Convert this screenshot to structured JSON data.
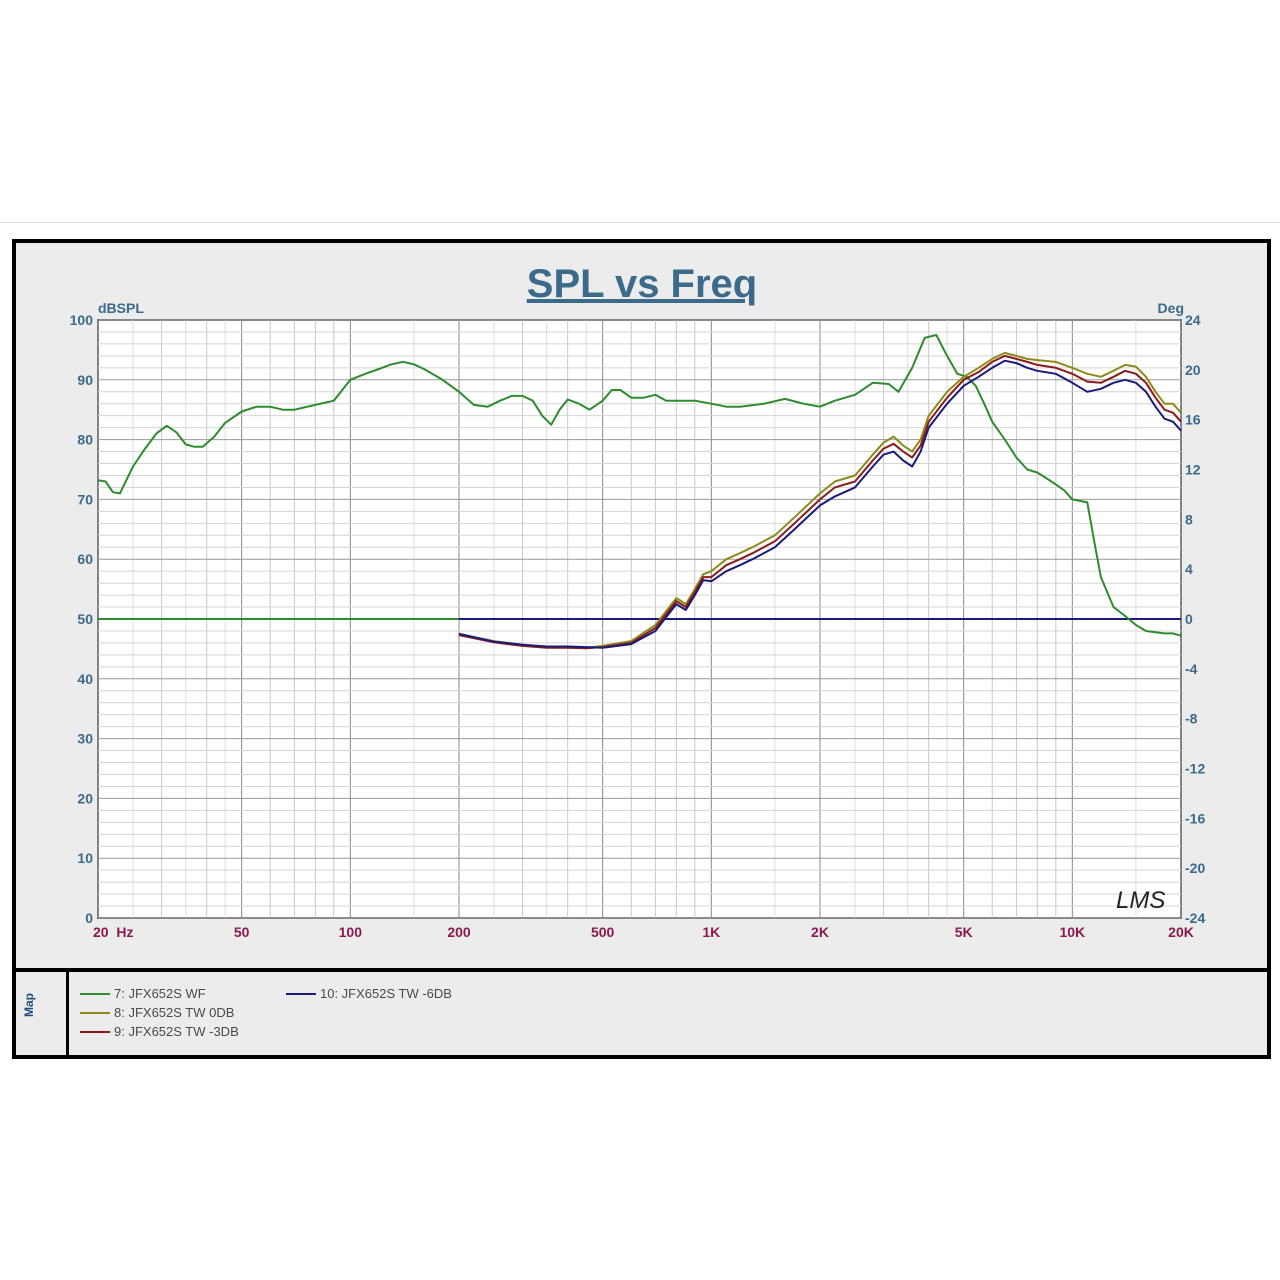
{
  "chart_data": {
    "type": "line",
    "title": "SPL vs Freq",
    "ylabel_left": "dBSPL",
    "ylabel_right": "Deg",
    "x_scale": "log",
    "xlim": [
      20,
      20000
    ],
    "ylim_left": [
      0,
      100
    ],
    "ylim_right": [
      -24,
      24
    ],
    "x_ticks": [
      {
        "value": 20,
        "label": "20  Hz"
      },
      {
        "value": 50,
        "label": "50"
      },
      {
        "value": 100,
        "label": "100"
      },
      {
        "value": 200,
        "label": "200"
      },
      {
        "value": 500,
        "label": "500"
      },
      {
        "value": 1000,
        "label": "1K"
      },
      {
        "value": 2000,
        "label": "2K"
      },
      {
        "value": 5000,
        "label": "5K"
      },
      {
        "value": 10000,
        "label": "10K"
      },
      {
        "value": 20000,
        "label": "20K"
      }
    ],
    "y_left_ticks": [
      "0",
      "10",
      "20",
      "30",
      "40",
      "50",
      "60",
      "70",
      "80",
      "90",
      "100"
    ],
    "y_right_ticks": [
      "-24",
      "-20",
      "-16",
      "-12",
      "-8",
      "-4",
      "0",
      "4",
      "8",
      "12",
      "16",
      "20",
      "24"
    ],
    "grid": true,
    "watermark": "LMS",
    "series": [
      {
        "name": "7: JFX652S  WF",
        "color": "#2e8b2e",
        "points": [
          [
            20,
            73.2
          ],
          [
            21,
            73
          ],
          [
            22,
            71.2
          ],
          [
            23,
            71
          ],
          [
            25,
            75.5
          ],
          [
            27,
            78.5
          ],
          [
            29,
            81
          ],
          [
            31,
            82.3
          ],
          [
            33,
            81.2
          ],
          [
            35,
            79.2
          ],
          [
            37,
            78.8
          ],
          [
            39,
            78.8
          ],
          [
            42,
            80.5
          ],
          [
            45,
            82.8
          ],
          [
            50,
            84.7
          ],
          [
            55,
            85.5
          ],
          [
            60,
            85.5
          ],
          [
            65,
            85
          ],
          [
            70,
            85
          ],
          [
            80,
            85.8
          ],
          [
            90,
            86.5
          ],
          [
            100,
            90
          ],
          [
            110,
            91
          ],
          [
            120,
            91.8
          ],
          [
            130,
            92.6
          ],
          [
            140,
            93
          ],
          [
            150,
            92.6
          ],
          [
            160,
            91.8
          ],
          [
            180,
            90
          ],
          [
            200,
            88
          ],
          [
            220,
            85.8
          ],
          [
            240,
            85.5
          ],
          [
            260,
            86.5
          ],
          [
            280,
            87.3
          ],
          [
            300,
            87.3
          ],
          [
            320,
            86.5
          ],
          [
            340,
            84
          ],
          [
            360,
            82.5
          ],
          [
            380,
            85
          ],
          [
            400,
            86.7
          ],
          [
            430,
            86
          ],
          [
            460,
            85
          ],
          [
            500,
            86.5
          ],
          [
            530,
            88.3
          ],
          [
            560,
            88.3
          ],
          [
            600,
            87
          ],
          [
            650,
            87
          ],
          [
            700,
            87.5
          ],
          [
            750,
            86.5
          ],
          [
            800,
            86.5
          ],
          [
            900,
            86.5
          ],
          [
            1000,
            86
          ],
          [
            1100,
            85.5
          ],
          [
            1200,
            85.5
          ],
          [
            1400,
            86
          ],
          [
            1600,
            86.8
          ],
          [
            1800,
            86
          ],
          [
            2000,
            85.5
          ],
          [
            2200,
            86.5
          ],
          [
            2500,
            87.5
          ],
          [
            2800,
            89.5
          ],
          [
            3100,
            89.3
          ],
          [
            3300,
            88
          ],
          [
            3600,
            92
          ],
          [
            3900,
            97
          ],
          [
            4200,
            97.5
          ],
          [
            4500,
            94
          ],
          [
            4800,
            91
          ],
          [
            5100,
            90.5
          ],
          [
            5400,
            89
          ],
          [
            5700,
            86
          ],
          [
            6000,
            83
          ],
          [
            6500,
            80
          ],
          [
            7000,
            77
          ],
          [
            7500,
            75
          ],
          [
            8000,
            74.5
          ],
          [
            8500,
            73.5
          ],
          [
            9000,
            72.5
          ],
          [
            9500,
            71.5
          ],
          [
            10000,
            70
          ],
          [
            11000,
            69.5
          ],
          [
            11500,
            63
          ],
          [
            12000,
            57
          ],
          [
            13000,
            52
          ],
          [
            14000,
            50.5
          ],
          [
            15000,
            49
          ],
          [
            16000,
            48
          ],
          [
            17000,
            47.8
          ],
          [
            18000,
            47.6
          ],
          [
            19000,
            47.6
          ],
          [
            20000,
            47.2
          ]
        ]
      },
      {
        "name": "8: JFX652S  TW  0DB",
        "color": "#8b8b1a",
        "points": [
          [
            200,
            47.5
          ],
          [
            250,
            46.3
          ],
          [
            300,
            45.7
          ],
          [
            350,
            45.3
          ],
          [
            400,
            45.3
          ],
          [
            450,
            45.2
          ],
          [
            500,
            45.5
          ],
          [
            600,
            46.3
          ],
          [
            700,
            49
          ],
          [
            800,
            53.5
          ],
          [
            850,
            52.5
          ],
          [
            900,
            55
          ],
          [
            950,
            57.5
          ],
          [
            1000,
            58
          ],
          [
            1100,
            60
          ],
          [
            1200,
            61
          ],
          [
            1300,
            62
          ],
          [
            1500,
            64
          ],
          [
            1700,
            67
          ],
          [
            2000,
            71
          ],
          [
            2200,
            73
          ],
          [
            2500,
            74
          ],
          [
            2800,
            77.5
          ],
          [
            3000,
            79.5
          ],
          [
            3200,
            80.5
          ],
          [
            3400,
            79
          ],
          [
            3600,
            78
          ],
          [
            3800,
            80
          ],
          [
            4000,
            84
          ],
          [
            4500,
            88
          ],
          [
            5000,
            90.5
          ],
          [
            5500,
            92
          ],
          [
            6000,
            93.5
          ],
          [
            6500,
            94.5
          ],
          [
            7000,
            94
          ],
          [
            7500,
            93.5
          ],
          [
            8000,
            93.3
          ],
          [
            9000,
            93
          ],
          [
            10000,
            92
          ],
          [
            11000,
            91
          ],
          [
            12000,
            90.5
          ],
          [
            13000,
            91.5
          ],
          [
            14000,
            92.5
          ],
          [
            15000,
            92.2
          ],
          [
            16000,
            90.5
          ],
          [
            17000,
            88
          ],
          [
            18000,
            86
          ],
          [
            19000,
            86
          ],
          [
            20000,
            84.5
          ]
        ]
      },
      {
        "name": "9: JFX652S  TW  -3DB",
        "color": "#8b1a1a",
        "points": [
          [
            200,
            47.3
          ],
          [
            250,
            46.1
          ],
          [
            300,
            45.5
          ],
          [
            350,
            45.2
          ],
          [
            400,
            45.2
          ],
          [
            450,
            45.1
          ],
          [
            500,
            45.3
          ],
          [
            600,
            46
          ],
          [
            700,
            48.5
          ],
          [
            800,
            53
          ],
          [
            850,
            52
          ],
          [
            900,
            54.5
          ],
          [
            950,
            57
          ],
          [
            1000,
            57
          ],
          [
            1100,
            59
          ],
          [
            1200,
            60
          ],
          [
            1300,
            61
          ],
          [
            1500,
            63
          ],
          [
            1700,
            66
          ],
          [
            2000,
            70
          ],
          [
            2200,
            72
          ],
          [
            2500,
            73
          ],
          [
            2800,
            76.5
          ],
          [
            3000,
            78.5
          ],
          [
            3200,
            79.3
          ],
          [
            3400,
            78
          ],
          [
            3600,
            77
          ],
          [
            3800,
            79
          ],
          [
            4000,
            83
          ],
          [
            4500,
            87
          ],
          [
            5000,
            90
          ],
          [
            5500,
            91.3
          ],
          [
            6000,
            93
          ],
          [
            6500,
            94
          ],
          [
            7000,
            93.5
          ],
          [
            7500,
            93
          ],
          [
            8000,
            92.5
          ],
          [
            9000,
            92
          ],
          [
            10000,
            91
          ],
          [
            11000,
            89.7
          ],
          [
            12000,
            89.5
          ],
          [
            13000,
            90.5
          ],
          [
            14000,
            91.5
          ],
          [
            15000,
            91
          ],
          [
            16000,
            89.5
          ],
          [
            17000,
            87
          ],
          [
            18000,
            85
          ],
          [
            19000,
            84.5
          ],
          [
            20000,
            83
          ]
        ]
      },
      {
        "name": "10: JFX652S  TW  -6DB",
        "color": "#1a1a7a",
        "points": [
          [
            200,
            47.5
          ],
          [
            250,
            46.2
          ],
          [
            300,
            45.7
          ],
          [
            350,
            45.4
          ],
          [
            400,
            45.4
          ],
          [
            450,
            45.3
          ],
          [
            500,
            45.2
          ],
          [
            600,
            45.8
          ],
          [
            700,
            48
          ],
          [
            800,
            52.5
          ],
          [
            850,
            51.5
          ],
          [
            900,
            54
          ],
          [
            950,
            56.5
          ],
          [
            1000,
            56.3
          ],
          [
            1100,
            58
          ],
          [
            1200,
            59
          ],
          [
            1300,
            60
          ],
          [
            1500,
            62
          ],
          [
            1700,
            65
          ],
          [
            2000,
            69
          ],
          [
            2200,
            70.5
          ],
          [
            2500,
            72
          ],
          [
            2800,
            75.5
          ],
          [
            3000,
            77.5
          ],
          [
            3200,
            78
          ],
          [
            3400,
            76.5
          ],
          [
            3600,
            75.5
          ],
          [
            3800,
            78
          ],
          [
            4000,
            82
          ],
          [
            4500,
            86
          ],
          [
            5000,
            89
          ],
          [
            5500,
            90.5
          ],
          [
            6000,
            92
          ],
          [
            6500,
            93.2
          ],
          [
            7000,
            92.8
          ],
          [
            7500,
            92
          ],
          [
            8000,
            91.5
          ],
          [
            9000,
            91
          ],
          [
            10000,
            89.5
          ],
          [
            11000,
            88
          ],
          [
            12000,
            88.5
          ],
          [
            13000,
            89.5
          ],
          [
            14000,
            90
          ],
          [
            15000,
            89.5
          ],
          [
            16000,
            88
          ],
          [
            17000,
            85.5
          ],
          [
            18000,
            83.5
          ],
          [
            19000,
            83
          ],
          [
            20000,
            81.5
          ]
        ]
      }
    ],
    "reference_lines": [
      {
        "color": "#2e8b2e",
        "x": [
          20,
          200
        ],
        "y": 50
      },
      {
        "color": "#1a1a7a",
        "x": [
          200,
          20000
        ],
        "y": 50
      }
    ]
  },
  "legend": {
    "map_label": "Map",
    "items": [
      {
        "label": "7: JFX652S  WF",
        "color": "#2e8b2e"
      },
      {
        "label": "8: JFX652S  TW  0DB",
        "color": "#8b8b1a"
      },
      {
        "label": "9: JFX652S  TW  -3DB",
        "color": "#8b1a1a"
      },
      {
        "label": "10: JFX652S  TW  -6DB",
        "color": "#1a1a7a"
      }
    ]
  }
}
